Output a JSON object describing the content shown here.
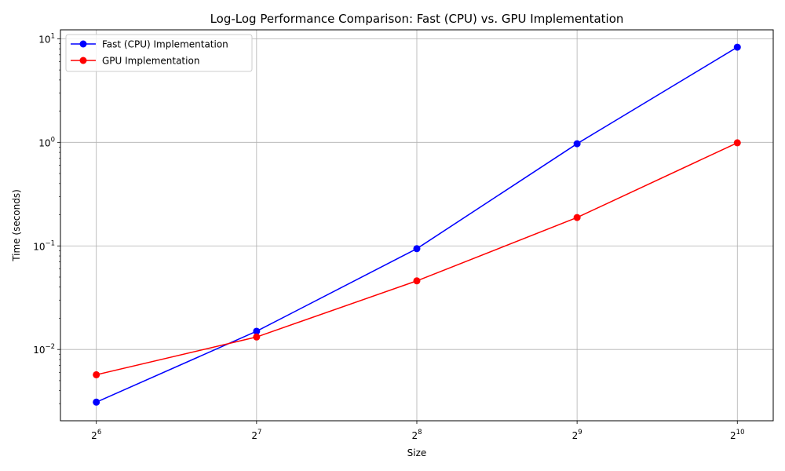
{
  "chart_data": {
    "type": "line",
    "title": "Log-Log Performance Comparison: Fast (CPU) vs. GPU Implementation",
    "xlabel": "Size",
    "ylabel": "Time (seconds)",
    "xscale": "log2",
    "yscale": "log10",
    "x": [
      64,
      128,
      256,
      512,
      1024
    ],
    "xlim": [
      54.8,
      1196
    ],
    "ylim": [
      0.00205,
      12.2
    ],
    "x_ticks": [
      {
        "value": 64,
        "base": "2",
        "exp": "6"
      },
      {
        "value": 128,
        "base": "2",
        "exp": "7"
      },
      {
        "value": 256,
        "base": "2",
        "exp": "8"
      },
      {
        "value": 512,
        "base": "2",
        "exp": "9"
      },
      {
        "value": 1024,
        "base": "2",
        "exp": "10"
      }
    ],
    "y_ticks": [
      {
        "value": 0.01,
        "base": "10",
        "exp": "−2"
      },
      {
        "value": 0.1,
        "base": "10",
        "exp": "−1"
      },
      {
        "value": 1,
        "base": "10",
        "exp": "0"
      },
      {
        "value": 10,
        "base": "10",
        "exp": "1"
      }
    ],
    "grid": true,
    "legend_position": "top-left",
    "series": [
      {
        "name": "Fast (CPU) Implementation",
        "color": "#0000ff",
        "marker": "circle",
        "values": [
          0.0031,
          0.015,
          0.094,
          0.97,
          8.3
        ]
      },
      {
        "name": "GPU Implementation",
        "color": "#ff0000",
        "marker": "circle",
        "values": [
          0.0057,
          0.0132,
          0.046,
          0.188,
          0.99
        ]
      }
    ]
  }
}
